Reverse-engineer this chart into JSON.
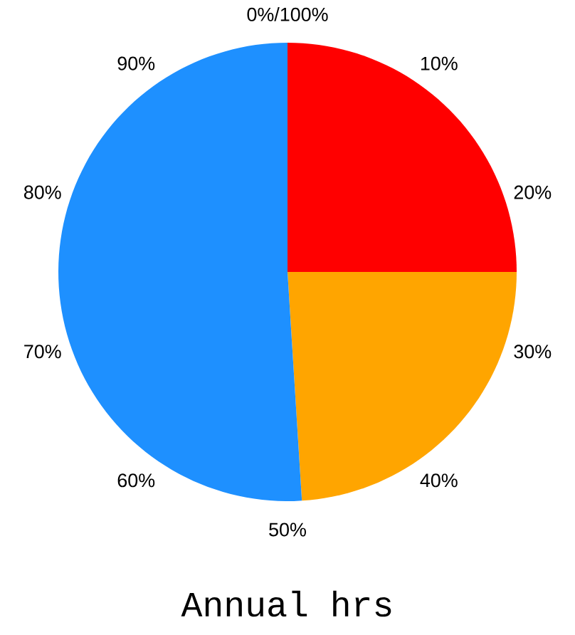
{
  "chart_data": {
    "type": "pie",
    "title": "Annual hrs",
    "categories": [
      null,
      null,
      null
    ],
    "values": [
      25,
      24,
      51
    ],
    "colors": [
      "#ff0000",
      "#ffa500",
      "#1e90ff"
    ],
    "annotations": [
      "0%/100%",
      "10%",
      "20%",
      "30%",
      "40%",
      "50%",
      "60%",
      "70%",
      "80%",
      "90%"
    ]
  }
}
